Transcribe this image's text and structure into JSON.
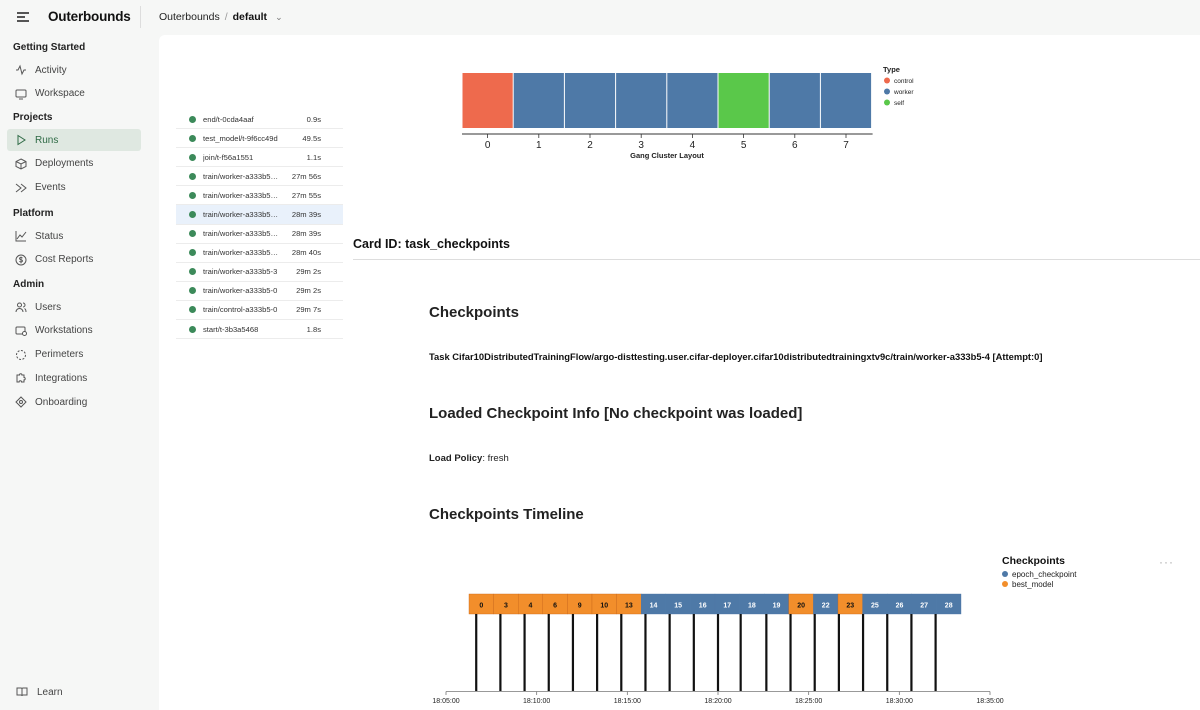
{
  "header": {
    "brand": "Outerbounds",
    "breadcrumb_root": "Outerbounds",
    "breadcrumb_sep": "/",
    "breadcrumb_current": "default"
  },
  "sidebar": {
    "sections": [
      {
        "title": "Getting Started",
        "items": [
          {
            "label": "Activity",
            "icon": "activity-icon"
          },
          {
            "label": "Workspace",
            "icon": "monitor-icon"
          }
        ]
      },
      {
        "title": "Projects",
        "items": [
          {
            "label": "Runs",
            "icon": "play-icon",
            "active": true
          },
          {
            "label": "Deployments",
            "icon": "box-icon"
          },
          {
            "label": "Events",
            "icon": "events-icon"
          }
        ]
      },
      {
        "title": "Platform",
        "items": [
          {
            "label": "Status",
            "icon": "chart-line-icon"
          },
          {
            "label": "Cost Reports",
            "icon": "dollar-icon"
          }
        ]
      },
      {
        "title": "Admin",
        "items": [
          {
            "label": "Users",
            "icon": "users-icon"
          },
          {
            "label": "Workstations",
            "icon": "workstation-icon"
          },
          {
            "label": "Perimeters",
            "icon": "perimeter-icon"
          },
          {
            "label": "Integrations",
            "icon": "puzzle-icon"
          },
          {
            "label": "Onboarding",
            "icon": "onboarding-icon"
          }
        ]
      }
    ],
    "learn": "Learn"
  },
  "tasks": [
    {
      "name": "end/t-0cda4aaf",
      "duration": "0.9s"
    },
    {
      "name": "test_model/t-9f6cc49d",
      "duration": "49.5s"
    },
    {
      "name": "join/t-f56a1551",
      "duration": "1.1s"
    },
    {
      "name": "train/worker-a333b5…",
      "duration": "27m 56s"
    },
    {
      "name": "train/worker-a333b5…",
      "duration": "27m 55s"
    },
    {
      "name": "train/worker-a333b5…",
      "duration": "28m 39s",
      "selected": true
    },
    {
      "name": "train/worker-a333b5…",
      "duration": "28m 39s"
    },
    {
      "name": "train/worker-a333b5…",
      "duration": "28m 40s"
    },
    {
      "name": "train/worker-a333b5-3",
      "duration": "29m 2s"
    },
    {
      "name": "train/worker-a333b5-0",
      "duration": "29m 2s"
    },
    {
      "name": "train/control-a333b5-0",
      "duration": "29m 7s"
    },
    {
      "name": "start/t-3b3a5468",
      "duration": "1.8s"
    }
  ],
  "colors": {
    "control": "#ee6a4d",
    "worker": "#4e79a7",
    "self": "#5ac84a",
    "epoch_checkpoint": "#4e79a7",
    "best_model": "#f28e2b",
    "status_dot": "#3c8a5a"
  },
  "card": {
    "title": "Card ID: task_checkpoints",
    "checkpoints_heading": "Checkpoints",
    "task_text": "Task Cifar10DistributedTrainingFlow/argo-disttesting.user.cifar-deployer.cifar10distributedtrainingxtv9c/train/worker-a333b5-4 [Attempt:0]",
    "loaded_heading": "Loaded Checkpoint Info [No checkpoint was loaded]",
    "load_policy_label": "Load Policy",
    "load_policy_value": ": fresh",
    "timeline_heading": "Checkpoints Timeline"
  },
  "chart_data": [
    {
      "type": "bar",
      "xlabel": "Gang Cluster Layout",
      "categories": [
        "0",
        "1",
        "2",
        "3",
        "4",
        "5",
        "6",
        "7"
      ],
      "node_types": [
        "control",
        "worker",
        "worker",
        "worker",
        "worker",
        "self",
        "worker",
        "worker"
      ],
      "legend": {
        "title": "Type",
        "entries": [
          "control",
          "worker",
          "self"
        ],
        "placement": "right"
      }
    },
    {
      "type": "timeline",
      "legend": {
        "title": "Checkpoints",
        "entries": [
          "epoch_checkpoint",
          "best_model"
        ],
        "placement": "top-right"
      },
      "x_ticks": [
        "18:05:00",
        "18:10:00",
        "18:15:00",
        "18:20:00",
        "18:25:00",
        "18:30:00",
        "18:35:00"
      ],
      "xlim": [
        "18:05:00",
        "18:35:00"
      ],
      "epochs": [
        {
          "label": "0",
          "type": "best_model"
        },
        {
          "label": "3",
          "type": "best_model"
        },
        {
          "label": "4",
          "type": "best_model"
        },
        {
          "label": "6",
          "type": "best_model"
        },
        {
          "label": "9",
          "type": "best_model"
        },
        {
          "label": "10",
          "type": "best_model"
        },
        {
          "label": "13",
          "type": "best_model"
        },
        {
          "label": "14",
          "type": "epoch_checkpoint"
        },
        {
          "label": "15",
          "type": "epoch_checkpoint"
        },
        {
          "label": "16",
          "type": "epoch_checkpoint"
        },
        {
          "label": "17",
          "type": "epoch_checkpoint"
        },
        {
          "label": "18",
          "type": "epoch_checkpoint"
        },
        {
          "label": "19",
          "type": "epoch_checkpoint"
        },
        {
          "label": "20",
          "type": "best_model"
        },
        {
          "label": "22",
          "type": "epoch_checkpoint"
        },
        {
          "label": "23",
          "type": "best_model"
        },
        {
          "label": "25",
          "type": "epoch_checkpoint"
        },
        {
          "label": "26",
          "type": "epoch_checkpoint"
        },
        {
          "label": "27",
          "type": "epoch_checkpoint"
        },
        {
          "label": "28",
          "type": "epoch_checkpoint"
        }
      ],
      "checkpoint_times": [
        "18:06:40",
        "18:08:00",
        "18:09:20",
        "18:10:40",
        "18:12:00",
        "18:13:20",
        "18:14:40",
        "18:16:00",
        "18:17:20",
        "18:18:40",
        "18:20:00",
        "18:21:15",
        "18:22:40",
        "18:24:00",
        "18:25:20",
        "18:26:40",
        "18:28:00",
        "18:29:20",
        "18:30:40",
        "18:32:00"
      ]
    }
  ]
}
